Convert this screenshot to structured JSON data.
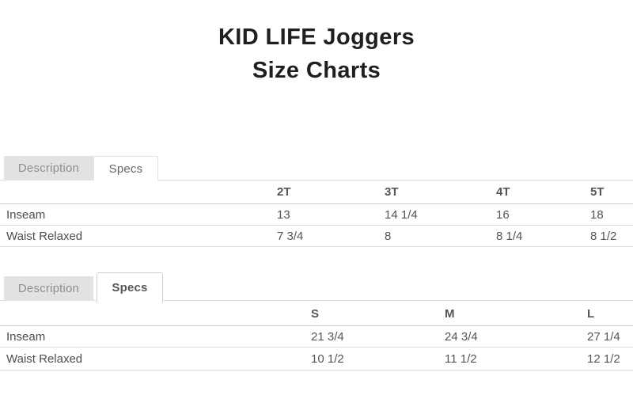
{
  "page_title": {
    "line1": "KID LIFE Joggers",
    "line2": "Size Charts"
  },
  "colors": {
    "title_text": "#1f1f1f",
    "inactive_tab_bg": "#e2e2e2",
    "inactive_tab_text": "#8f8f8f",
    "active_tab_text": "#555555",
    "table_text": "#555555",
    "border": "#dcdcdc"
  },
  "sections": [
    {
      "tabs": [
        {
          "label": "Description",
          "active": false
        },
        {
          "label": "Specs",
          "active": true
        }
      ],
      "table": {
        "columns": [
          "",
          "2T",
          "3T",
          "4T",
          "5T"
        ],
        "rows": [
          {
            "label": "Inseam",
            "values": [
              "13",
              "14 1/4",
              "16",
              "18"
            ]
          },
          {
            "label": "Waist Relaxed",
            "values": [
              "7 3/4",
              "8",
              "8 1/4",
              "8 1/2"
            ]
          }
        ]
      }
    },
    {
      "tabs": [
        {
          "label": "Description",
          "active": false
        },
        {
          "label": "Specs",
          "active": true
        }
      ],
      "table": {
        "columns": [
          "",
          "S",
          "M",
          "L"
        ],
        "rows": [
          {
            "label": "Inseam",
            "values": [
              "21 3/4",
              "24 3/4",
              "27 1/4"
            ]
          },
          {
            "label": "Waist Relaxed",
            "values": [
              "10 1/2",
              "11 1/2",
              "12 1/2"
            ]
          }
        ]
      }
    }
  ]
}
